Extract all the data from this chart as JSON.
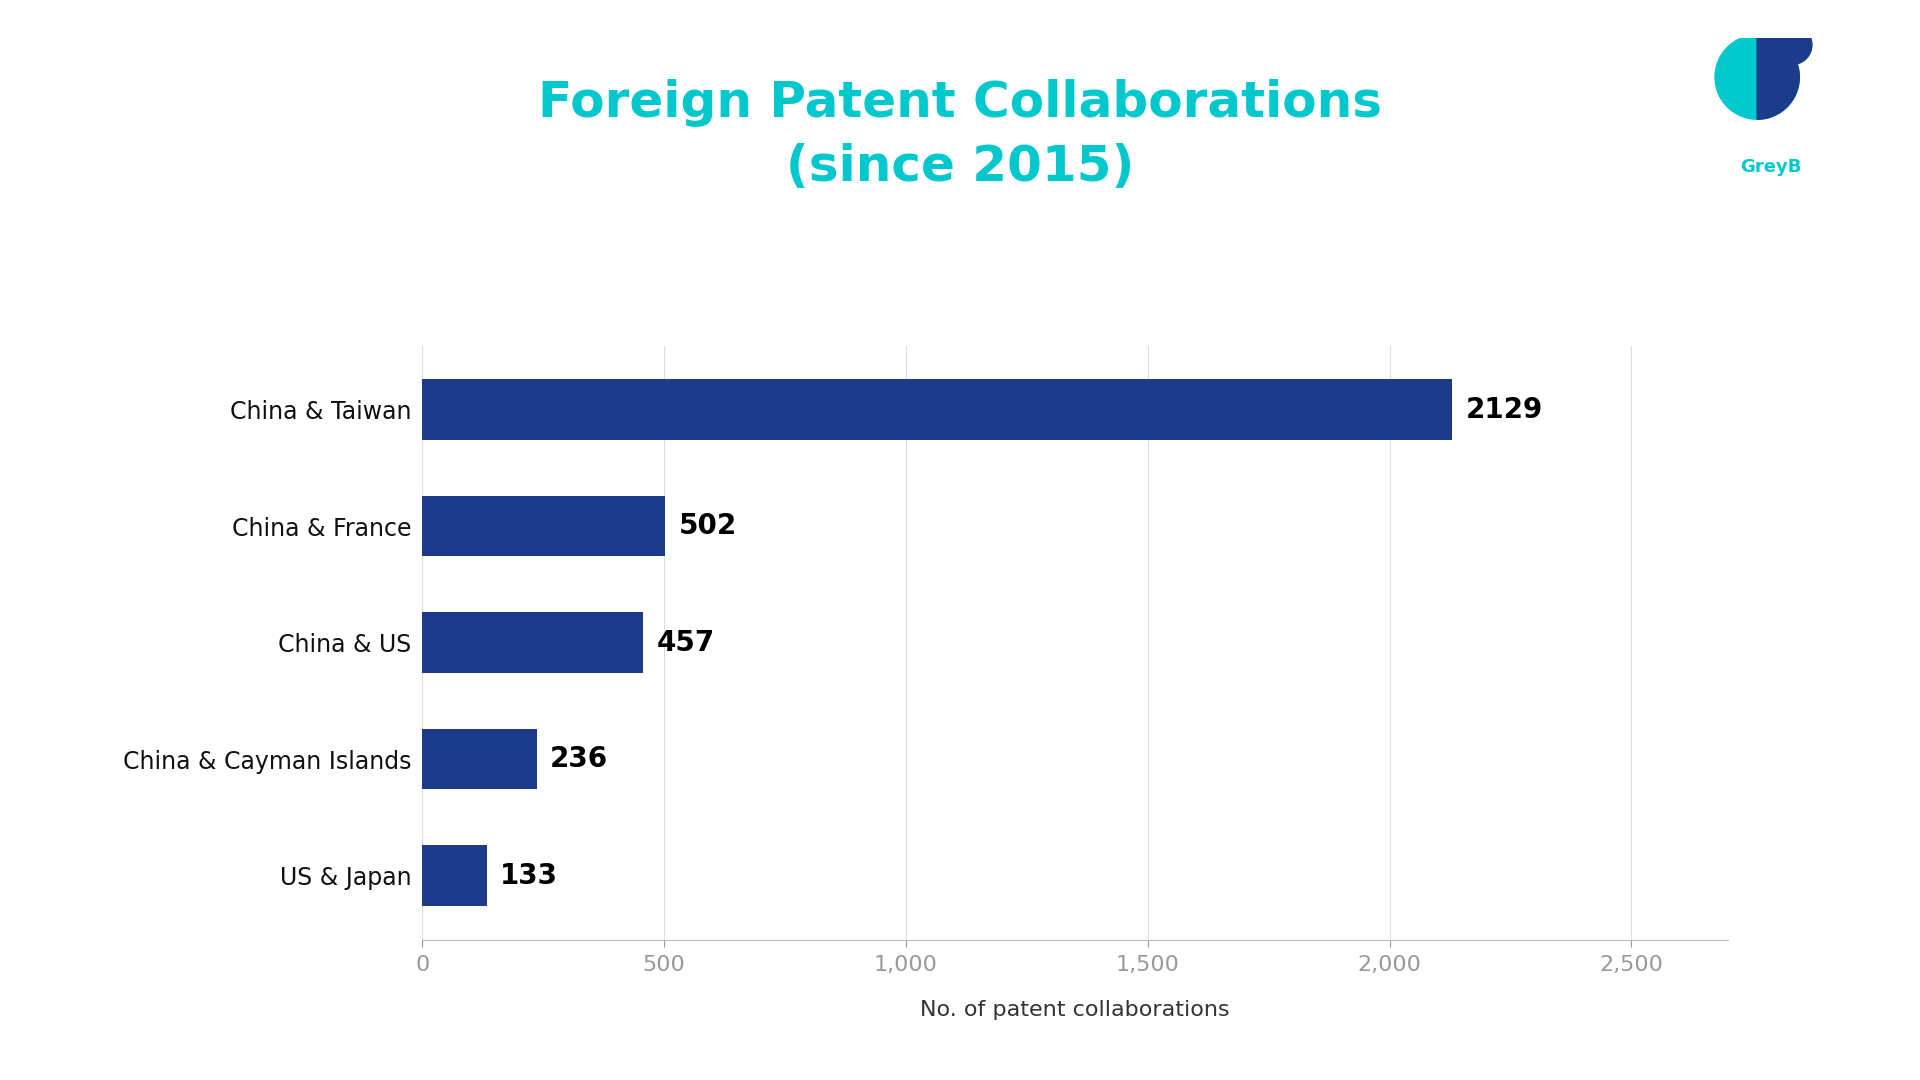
{
  "title_line1": "Foreign Patent Collaborations",
  "title_line2": "(since 2015)",
  "title_color": "#00C8CC",
  "categories": [
    "China & Taiwan",
    "China & France",
    "China & US",
    "China & Cayman Islands",
    "US & Japan"
  ],
  "values": [
    2129,
    502,
    457,
    236,
    133
  ],
  "bar_color": "#1E3A8A",
  "value_labels": [
    "2129",
    "502",
    "457",
    "236",
    "133"
  ],
  "xlabel": "No. of patent collaborations",
  "xlabel_fontsize": 16,
  "xlabel_color": "#333333",
  "xlim": [
    0,
    2700
  ],
  "xticks": [
    0,
    500,
    1000,
    1500,
    2000,
    2500
  ],
  "xtick_labels": [
    "0",
    "500",
    "1,000",
    "1,500",
    "2,000",
    "2,500"
  ],
  "background_color": "#ffffff",
  "bar_height": 0.52,
  "title_fontsize": 36,
  "ylabel_fontsize": 17,
  "value_label_fontsize": 20,
  "tick_label_fontsize": 16,
  "value_label_color": "#000000",
  "ytick_label_color": "#111111",
  "xtick_label_color": "#111111",
  "logo_teal": "#00C8CC",
  "logo_dark": "#1E3A8A",
  "greyb_label_color": "#00C8CC"
}
